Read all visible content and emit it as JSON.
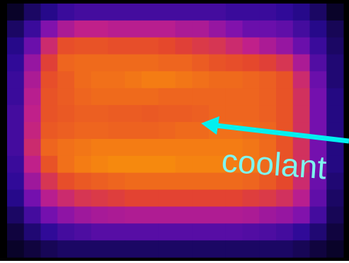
{
  "chart_data": {
    "type": "heatmap",
    "annotation": "coolant",
    "colormap": [
      "#05021a",
      "#2a0a96",
      "#7a10b0",
      "#c0208a",
      "#e4442e",
      "#f27418",
      "#fda800"
    ],
    "vlim": [
      0,
      1
    ],
    "values": [
      [
        0.02,
        0.1,
        0.15,
        0.2,
        0.22,
        0.22,
        0.22,
        0.22,
        0.22,
        0.22,
        0.22,
        0.22,
        0.22,
        0.2,
        0.2,
        0.2,
        0.18,
        0.15,
        0.1,
        0.02
      ],
      [
        0.1,
        0.2,
        0.35,
        0.45,
        0.5,
        0.5,
        0.48,
        0.48,
        0.48,
        0.48,
        0.45,
        0.45,
        0.4,
        0.35,
        0.3,
        0.3,
        0.28,
        0.22,
        0.15,
        0.08
      ],
      [
        0.15,
        0.3,
        0.55,
        0.7,
        0.72,
        0.72,
        0.7,
        0.7,
        0.7,
        0.68,
        0.65,
        0.62,
        0.6,
        0.55,
        0.5,
        0.45,
        0.4,
        0.3,
        0.2,
        0.1
      ],
      [
        0.18,
        0.4,
        0.65,
        0.78,
        0.8,
        0.8,
        0.8,
        0.8,
        0.8,
        0.78,
        0.78,
        0.75,
        0.72,
        0.7,
        0.68,
        0.65,
        0.6,
        0.45,
        0.25,
        0.12
      ],
      [
        0.2,
        0.45,
        0.7,
        0.75,
        0.8,
        0.82,
        0.82,
        0.84,
        0.86,
        0.86,
        0.84,
        0.82,
        0.8,
        0.8,
        0.78,
        0.76,
        0.72,
        0.55,
        0.3,
        0.12
      ],
      [
        0.2,
        0.48,
        0.72,
        0.75,
        0.78,
        0.8,
        0.8,
        0.8,
        0.8,
        0.78,
        0.78,
        0.78,
        0.78,
        0.78,
        0.78,
        0.76,
        0.72,
        0.58,
        0.32,
        0.14
      ],
      [
        0.22,
        0.5,
        0.72,
        0.74,
        0.76,
        0.76,
        0.75,
        0.75,
        0.74,
        0.75,
        0.75,
        0.76,
        0.78,
        0.78,
        0.78,
        0.76,
        0.72,
        0.58,
        0.32,
        0.14
      ],
      [
        0.22,
        0.52,
        0.74,
        0.76,
        0.78,
        0.78,
        0.77,
        0.77,
        0.77,
        0.78,
        0.8,
        0.8,
        0.82,
        0.82,
        0.8,
        0.78,
        0.72,
        0.58,
        0.32,
        0.14
      ],
      [
        0.22,
        0.55,
        0.78,
        0.82,
        0.84,
        0.86,
        0.86,
        0.86,
        0.86,
        0.86,
        0.86,
        0.86,
        0.86,
        0.86,
        0.84,
        0.8,
        0.72,
        0.58,
        0.32,
        0.14
      ],
      [
        0.2,
        0.5,
        0.72,
        0.82,
        0.86,
        0.88,
        0.9,
        0.9,
        0.9,
        0.9,
        0.88,
        0.88,
        0.88,
        0.86,
        0.84,
        0.8,
        0.72,
        0.58,
        0.32,
        0.14
      ],
      [
        0.18,
        0.42,
        0.6,
        0.7,
        0.74,
        0.76,
        0.78,
        0.8,
        0.8,
        0.8,
        0.8,
        0.8,
        0.8,
        0.8,
        0.78,
        0.74,
        0.68,
        0.55,
        0.3,
        0.12
      ],
      [
        0.15,
        0.32,
        0.48,
        0.55,
        0.6,
        0.62,
        0.64,
        0.66,
        0.66,
        0.66,
        0.66,
        0.66,
        0.66,
        0.66,
        0.64,
        0.62,
        0.58,
        0.48,
        0.28,
        0.1
      ],
      [
        0.1,
        0.22,
        0.32,
        0.38,
        0.42,
        0.44,
        0.45,
        0.46,
        0.46,
        0.46,
        0.46,
        0.46,
        0.46,
        0.46,
        0.45,
        0.42,
        0.4,
        0.35,
        0.22,
        0.08
      ],
      [
        0.05,
        0.12,
        0.18,
        0.22,
        0.24,
        0.26,
        0.26,
        0.26,
        0.26,
        0.26,
        0.26,
        0.26,
        0.26,
        0.26,
        0.25,
        0.24,
        0.22,
        0.18,
        0.12,
        0.05
      ],
      [
        0.02,
        0.05,
        0.08,
        0.1,
        0.1,
        0.1,
        0.1,
        0.1,
        0.1,
        0.1,
        0.1,
        0.1,
        0.1,
        0.1,
        0.1,
        0.1,
        0.1,
        0.08,
        0.05,
        0.02
      ]
    ]
  }
}
